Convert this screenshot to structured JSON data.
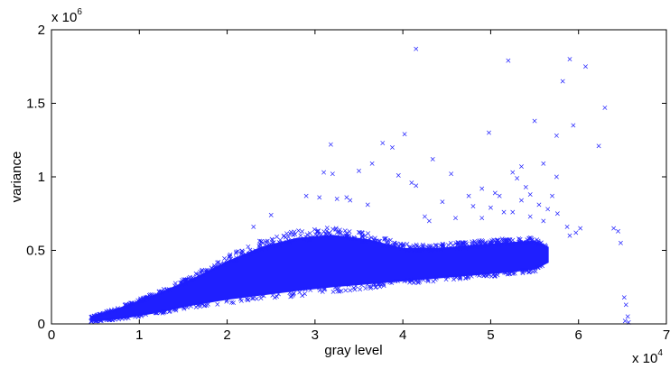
{
  "chart_data": {
    "type": "scatter",
    "marker": "x",
    "color": "#1f1fff",
    "grid": false,
    "xlabel": "gray level",
    "ylabel": "variance",
    "xlim": [
      0,
      70000
    ],
    "ylim": [
      0,
      2000000
    ],
    "x_ticks": [
      0,
      10000,
      20000,
      30000,
      40000,
      50000,
      60000,
      70000
    ],
    "x_tick_labels": [
      "0",
      "1",
      "2",
      "3",
      "4",
      "5",
      "6",
      "7"
    ],
    "y_ticks": [
      0,
      500000,
      1000000,
      1500000,
      2000000
    ],
    "y_tick_labels": [
      "0",
      "0.5",
      "1",
      "1.5",
      "2"
    ],
    "x_multiplier": {
      "base": "x 10",
      "exponent": "4"
    },
    "y_multiplier": {
      "base": "x 10",
      "exponent": "6"
    },
    "dense_band": {
      "description_points": [
        {
          "x": 4500,
          "lower": 18000,
          "upper": 45000
        },
        {
          "x": 8000,
          "lower": 40000,
          "upper": 110000
        },
        {
          "x": 12000,
          "lower": 80000,
          "upper": 200000
        },
        {
          "x": 16000,
          "lower": 130000,
          "upper": 300000
        },
        {
          "x": 20000,
          "lower": 170000,
          "upper": 420000
        },
        {
          "x": 24000,
          "lower": 200000,
          "upper": 520000
        },
        {
          "x": 28000,
          "lower": 230000,
          "upper": 580000
        },
        {
          "x": 32000,
          "lower": 255000,
          "upper": 600000
        },
        {
          "x": 36000,
          "lower": 275000,
          "upper": 570000
        },
        {
          "x": 40000,
          "lower": 295000,
          "upper": 510000
        },
        {
          "x": 44000,
          "lower": 315000,
          "upper": 510000
        },
        {
          "x": 48000,
          "lower": 335000,
          "upper": 530000
        },
        {
          "x": 52000,
          "lower": 355000,
          "upper": 550000
        },
        {
          "x": 55000,
          "lower": 375000,
          "upper": 560000
        },
        {
          "x": 56500,
          "lower": 420000,
          "upper": 520000
        }
      ]
    },
    "outliers": [
      [
        41500,
        1870000
      ],
      [
        52000,
        1790000
      ],
      [
        59000,
        1800000
      ],
      [
        60800,
        1750000
      ],
      [
        58200,
        1650000
      ],
      [
        63000,
        1470000
      ],
      [
        59400,
        1350000
      ],
      [
        55000,
        1380000
      ],
      [
        57500,
        1280000
      ],
      [
        49800,
        1300000
      ],
      [
        40200,
        1290000
      ],
      [
        62300,
        1210000
      ],
      [
        31800,
        1220000
      ],
      [
        37700,
        1230000
      ],
      [
        43400,
        1120000
      ],
      [
        38800,
        1200000
      ],
      [
        36500,
        1090000
      ],
      [
        56000,
        1090000
      ],
      [
        53500,
        1070000
      ],
      [
        31000,
        1030000
      ],
      [
        32000,
        1020000
      ],
      [
        35000,
        1040000
      ],
      [
        39500,
        1010000
      ],
      [
        45500,
        1020000
      ],
      [
        52500,
        1030000
      ],
      [
        53000,
        990000
      ],
      [
        41000,
        960000
      ],
      [
        41500,
        940000
      ],
      [
        49000,
        920000
      ],
      [
        54000,
        930000
      ],
      [
        50500,
        890000
      ],
      [
        51000,
        870000
      ],
      [
        54500,
        880000
      ],
      [
        57500,
        1000000
      ],
      [
        47500,
        870000
      ],
      [
        48000,
        800000
      ],
      [
        29000,
        870000
      ],
      [
        32500,
        850000
      ],
      [
        33600,
        860000
      ],
      [
        30500,
        860000
      ],
      [
        34000,
        840000
      ],
      [
        36000,
        810000
      ],
      [
        44500,
        830000
      ],
      [
        53500,
        840000
      ],
      [
        55500,
        810000
      ],
      [
        57000,
        870000
      ],
      [
        25000,
        740000
      ],
      [
        23000,
        660000
      ],
      [
        54500,
        730000
      ],
      [
        49000,
        720000
      ],
      [
        46000,
        720000
      ],
      [
        50000,
        790000
      ],
      [
        56500,
        780000
      ],
      [
        57600,
        750000
      ],
      [
        58700,
        660000
      ],
      [
        59000,
        600000
      ],
      [
        59700,
        620000
      ],
      [
        60200,
        650000
      ],
      [
        64000,
        650000
      ],
      [
        64500,
        630000
      ],
      [
        64800,
        550000
      ],
      [
        65200,
        180000
      ],
      [
        65400,
        130000
      ],
      [
        65600,
        50000
      ],
      [
        65300,
        20000
      ],
      [
        65700,
        10000
      ],
      [
        42500,
        730000
      ],
      [
        43000,
        700000
      ],
      [
        51500,
        760000
      ],
      [
        52500,
        760000
      ],
      [
        56000,
        700000
      ]
    ]
  }
}
